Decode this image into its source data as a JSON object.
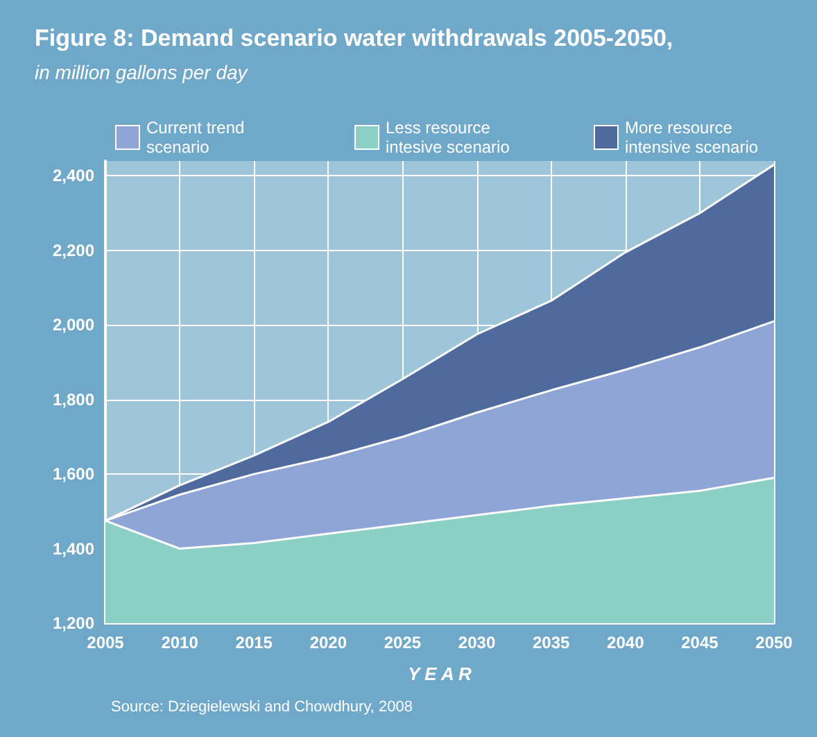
{
  "chart_data": {
    "type": "area",
    "title": "Figure 8: Demand scenario water withdrawals 2005-2050,",
    "subtitle": "in million gallons per day",
    "xlabel": "Y E A R",
    "annotations": [
      "Source: Dziegielewski and Chowdhury, 2008"
    ],
    "x": [
      2005,
      2010,
      2015,
      2020,
      2025,
      2030,
      2035,
      2040,
      2045,
      2050
    ],
    "series": [
      {
        "name": "Current trend scenario",
        "color": "#8fa5d6",
        "values": [
          1475,
          1545,
          1600,
          1645,
          1700,
          1765,
          1825,
          1880,
          1940,
          2010
        ]
      },
      {
        "name": "Less resource intesive scenario",
        "color": "#8ccfc7",
        "values": [
          1475,
          1400,
          1415,
          1440,
          1465,
          1490,
          1515,
          1535,
          1555,
          1590
        ]
      },
      {
        "name": "More resource intensive scenario",
        "color": "#4f6a9c",
        "values": [
          1475,
          1570,
          1650,
          1740,
          1855,
          1975,
          2065,
          2195,
          2300,
          2430
        ]
      }
    ],
    "xlim": [
      2005,
      2050
    ],
    "xticks": [
      2005,
      2010,
      2015,
      2020,
      2025,
      2030,
      2035,
      2040,
      2045,
      2050
    ],
    "ylim": [
      1200,
      2440
    ],
    "yticks": [
      {
        "value": 1200,
        "label": "1,200"
      },
      {
        "value": 1400,
        "label": "1,400"
      },
      {
        "value": 1600,
        "label": "1,600"
      },
      {
        "value": 1800,
        "label": "1,800"
      },
      {
        "value": 2000,
        "label": "2,000"
      },
      {
        "value": 2200,
        "label": "2,200"
      },
      {
        "value": 2400,
        "label": "2,400"
      }
    ],
    "grid": true,
    "legend": "top",
    "marker": "none",
    "line_style": "solid"
  }
}
